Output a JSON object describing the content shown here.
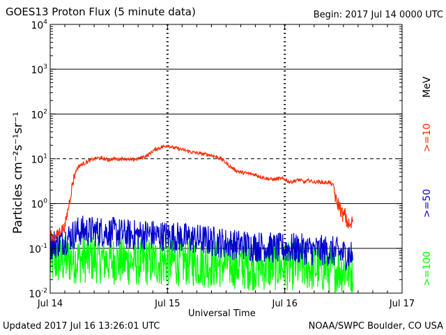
{
  "page": {
    "title": "GOES13 Proton Flux (5 minute data)",
    "begin": "Begin: 2017 Jul 14 0000 UTC",
    "updated": "Updated 2017 Jul 16 13:26:01 UTC",
    "credit": "NOAA/SWPC Boulder, CO USA"
  },
  "chart_data": {
    "type": "line",
    "title": "GOES13 Proton Flux (5 minute data)",
    "xlabel": "Universal Time",
    "ylabel": "Particles cm⁻²s⁻¹sr⁻¹",
    "yscale": "log",
    "ylim": [
      0.01,
      10000
    ],
    "y_ticks": [
      {
        "base": "10",
        "exp": "4",
        "value": 10000
      },
      {
        "base": "10",
        "exp": "3",
        "value": 1000
      },
      {
        "base": "10",
        "exp": "2",
        "value": 100
      },
      {
        "base": "10",
        "exp": "1",
        "value": 10
      },
      {
        "base": "10",
        "exp": "0",
        "value": 1
      },
      {
        "base": "10",
        "exp": "-1",
        "value": 0.1
      },
      {
        "base": "10",
        "exp": "-2",
        "value": 0.01
      }
    ],
    "x_unit": "hours since 2017 Jul 14 0000 UTC",
    "xlim": [
      0,
      72
    ],
    "x_ticks": [
      {
        "label": "Jul 14",
        "value": 0
      },
      {
        "label": "Jul 15",
        "value": 24
      },
      {
        "label": "Jul 16",
        "value": 48
      },
      {
        "label": "Jul 17",
        "value": 72
      }
    ],
    "threshold_lines": [
      {
        "value": 10,
        "style": "dashed"
      }
    ],
    "energy_unit": "MeV",
    "series": [
      {
        "name": ">=10",
        "color": "#ff2a00",
        "x": [
          0,
          1,
          2,
          3,
          3.5,
          4,
          4.5,
          5,
          5.5,
          6,
          7,
          8,
          9,
          10,
          11,
          12,
          13,
          14,
          15,
          16,
          17,
          18,
          19,
          20,
          21,
          22,
          23,
          24,
          24.5,
          25,
          26,
          27,
          28,
          29,
          30,
          31,
          32,
          33,
          34,
          35,
          36,
          37,
          38,
          39,
          40,
          41,
          42,
          43,
          44,
          45,
          46,
          47,
          48,
          49,
          50,
          51,
          52,
          53,
          54,
          55,
          56,
          57,
          58,
          58.3,
          58.6,
          59,
          59.5,
          60,
          60.3,
          60.6,
          61,
          61.5,
          62
        ],
        "values": [
          0.2,
          0.17,
          0.25,
          0.3,
          0.6,
          1.2,
          2.5,
          4.5,
          6.0,
          7.0,
          8.0,
          9.0,
          10.0,
          10.5,
          10.0,
          9.5,
          10.0,
          9.8,
          10.2,
          9.5,
          9.5,
          10.0,
          11.0,
          12.0,
          15.0,
          17.0,
          18.5,
          20.0,
          19.0,
          18.0,
          17.0,
          16.0,
          15.0,
          14.0,
          13.5,
          13.0,
          12.5,
          12.0,
          11.0,
          10.0,
          8.0,
          6.5,
          5.5,
          5.0,
          4.8,
          4.6,
          4.4,
          4.0,
          3.7,
          3.5,
          3.5,
          3.6,
          3.5,
          3.0,
          3.2,
          3.4,
          3.0,
          3.3,
          3.0,
          3.1,
          2.9,
          3.0,
          2.5,
          1.5,
          1.0,
          1.0,
          0.7,
          0.5,
          0.6,
          0.4,
          0.35,
          0.3,
          0.5
        ]
      },
      {
        "name": ">=50",
        "color": "#0000cc",
        "x": [
          0,
          2,
          4,
          6,
          8,
          10,
          12,
          14,
          16,
          18,
          20,
          22,
          24,
          26,
          28,
          30,
          32,
          34,
          36,
          38,
          40,
          42,
          44,
          46,
          48,
          50,
          52,
          54,
          56,
          58,
          60,
          62
        ],
        "values": [
          0.12,
          0.14,
          0.18,
          0.25,
          0.24,
          0.24,
          0.23,
          0.22,
          0.2,
          0.2,
          0.21,
          0.19,
          0.19,
          0.18,
          0.17,
          0.16,
          0.15,
          0.14,
          0.13,
          0.12,
          0.12,
          0.11,
          0.11,
          0.1,
          0.1,
          0.1,
          0.095,
          0.09,
          0.09,
          0.085,
          0.075,
          0.07
        ]
      },
      {
        "name": ">=100",
        "color": "#00ff00",
        "x": [
          0,
          4,
          8,
          12,
          16,
          20,
          24,
          28,
          32,
          36,
          40,
          44,
          48,
          52,
          56,
          60,
          62
        ],
        "values": [
          0.05,
          0.055,
          0.06,
          0.055,
          0.05,
          0.05,
          0.05,
          0.05,
          0.045,
          0.045,
          0.04,
          0.04,
          0.04,
          0.04,
          0.035,
          0.035,
          0.03
        ]
      }
    ]
  }
}
